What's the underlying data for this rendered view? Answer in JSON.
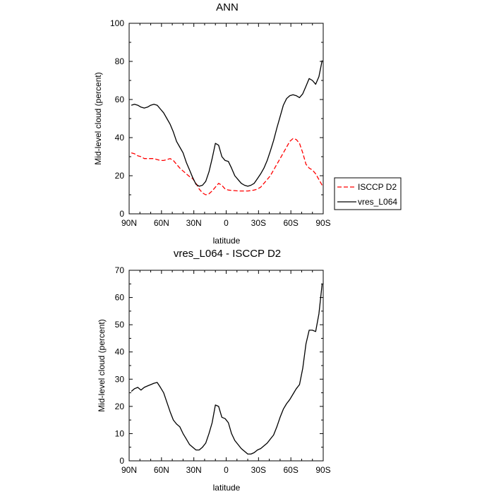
{
  "chart_data": [
    {
      "type": "line",
      "title": "ANN",
      "xlabel": "latitude",
      "ylabel": "Mid-level cloud (percent)",
      "xlim": [
        90,
        -90
      ],
      "ylim": [
        0,
        100
      ],
      "x_ticks": [
        90,
        60,
        30,
        0,
        -30,
        -60,
        -90
      ],
      "x_tick_labels": [
        "90N",
        "60N",
        "30N",
        "0",
        "30S",
        "60S",
        "90S"
      ],
      "y_ticks": [
        0,
        20,
        40,
        60,
        80,
        100
      ],
      "y_tick_labels": [
        "0",
        "20",
        "40",
        "60",
        "80",
        "100"
      ],
      "legend_position": "right",
      "series": [
        {
          "name": "ISCCP D2",
          "color": "#ff0000",
          "dash": "dashed",
          "x": [
            88,
            85,
            82,
            79,
            76,
            73,
            70,
            67,
            64,
            61,
            58,
            55,
            52,
            49,
            46,
            43,
            40,
            37,
            34,
            31,
            28,
            25,
            22,
            19,
            16,
            13,
            10,
            7,
            4,
            1,
            -2,
            -5,
            -8,
            -11,
            -14,
            -17,
            -20,
            -23,
            -26,
            -29,
            -32,
            -35,
            -38,
            -41,
            -44,
            -47,
            -50,
            -53,
            -56,
            -59,
            -62,
            -65,
            -68,
            -71,
            -74,
            -77,
            -80,
            -83,
            -86,
            -89
          ],
          "values": [
            32,
            31.5,
            30.5,
            30,
            29,
            29,
            29,
            29,
            28.5,
            28,
            28,
            28.5,
            29,
            28,
            26,
            24,
            22.5,
            21,
            19.5,
            18.5,
            16,
            13,
            11,
            10,
            10.5,
            12,
            14,
            16,
            15,
            13,
            12.5,
            12.3,
            12.2,
            12,
            12,
            12,
            12,
            12.2,
            12.5,
            13,
            14,
            16,
            18,
            20,
            23,
            26,
            29,
            32,
            35,
            38,
            39.5,
            39,
            37,
            32,
            26,
            24,
            23,
            21,
            18,
            15
          ]
        },
        {
          "name": "vres_L064",
          "color": "#000000",
          "dash": "solid",
          "x": [
            88,
            85,
            82,
            79,
            76,
            73,
            70,
            67,
            64,
            61,
            58,
            55,
            52,
            49,
            46,
            43,
            40,
            37,
            34,
            31,
            28,
            25,
            22,
            19,
            16,
            13,
            10,
            7,
            4,
            1,
            -2,
            -5,
            -8,
            -11,
            -14,
            -17,
            -20,
            -23,
            -26,
            -29,
            -32,
            -35,
            -38,
            -41,
            -44,
            -47,
            -50,
            -53,
            -56,
            -59,
            -62,
            -65,
            -68,
            -71,
            -74,
            -77,
            -80,
            -83,
            -86,
            -89
          ],
          "values": [
            57,
            57.5,
            57,
            56,
            55.5,
            56,
            57,
            57.5,
            57,
            55,
            53,
            50,
            47,
            43,
            38,
            35,
            32,
            27,
            23,
            19,
            15.5,
            14.5,
            15,
            17,
            22,
            29,
            37,
            36,
            30,
            28,
            27.5,
            24,
            20,
            18,
            16,
            15,
            14.5,
            15,
            16,
            18.5,
            21,
            24,
            28,
            33,
            38.5,
            45,
            51,
            57,
            60.5,
            62,
            62.5,
            62,
            61,
            63,
            67,
            71,
            70,
            68,
            72,
            80.5
          ]
        }
      ]
    },
    {
      "type": "line",
      "title": "vres_L064 - ISCCP D2",
      "xlabel": "latitude",
      "ylabel": "Mid-level cloud (percent)",
      "xlim": [
        90,
        -90
      ],
      "ylim": [
        0,
        70
      ],
      "x_ticks": [
        90,
        60,
        30,
        0,
        -30,
        -60,
        -90
      ],
      "x_tick_labels": [
        "90N",
        "60N",
        "30N",
        "0",
        "30S",
        "60S",
        "90S"
      ],
      "y_ticks": [
        0,
        10,
        20,
        30,
        40,
        50,
        60,
        70
      ],
      "y_tick_labels": [
        "0",
        "10",
        "20",
        "30",
        "40",
        "50",
        "60",
        "70"
      ],
      "series": [
        {
          "name": "vres_L064 - ISCCP D2",
          "color": "#000000",
          "dash": "solid",
          "x": [
            88,
            85,
            82,
            79,
            76,
            73,
            70,
            67,
            64,
            61,
            58,
            55,
            52,
            49,
            46,
            43,
            40,
            37,
            34,
            31,
            28,
            25,
            22,
            19,
            16,
            13,
            10,
            7,
            4,
            1,
            -2,
            -5,
            -8,
            -11,
            -14,
            -17,
            -20,
            -23,
            -26,
            -29,
            -32,
            -35,
            -38,
            -41,
            -44,
            -47,
            -50,
            -53,
            -56,
            -59,
            -62,
            -65,
            -68,
            -71,
            -74,
            -77,
            -80,
            -83,
            -86,
            -89
          ],
          "values": [
            25.5,
            26.5,
            27,
            26,
            27,
            27.5,
            28,
            28.5,
            28.8,
            27,
            25,
            21.5,
            18,
            15,
            13.5,
            12.5,
            10,
            8,
            6,
            5,
            4,
            4,
            5,
            6.5,
            10,
            14,
            20.5,
            20,
            16,
            15.5,
            14,
            10,
            7.5,
            6,
            4.5,
            3.5,
            2.5,
            2.5,
            3,
            4,
            4.5,
            5.5,
            6.5,
            8,
            9.5,
            12.5,
            16,
            19,
            21,
            22.5,
            24.5,
            26.5,
            28,
            34,
            43,
            48,
            48,
            47.5,
            54,
            65
          ]
        }
      ]
    }
  ]
}
